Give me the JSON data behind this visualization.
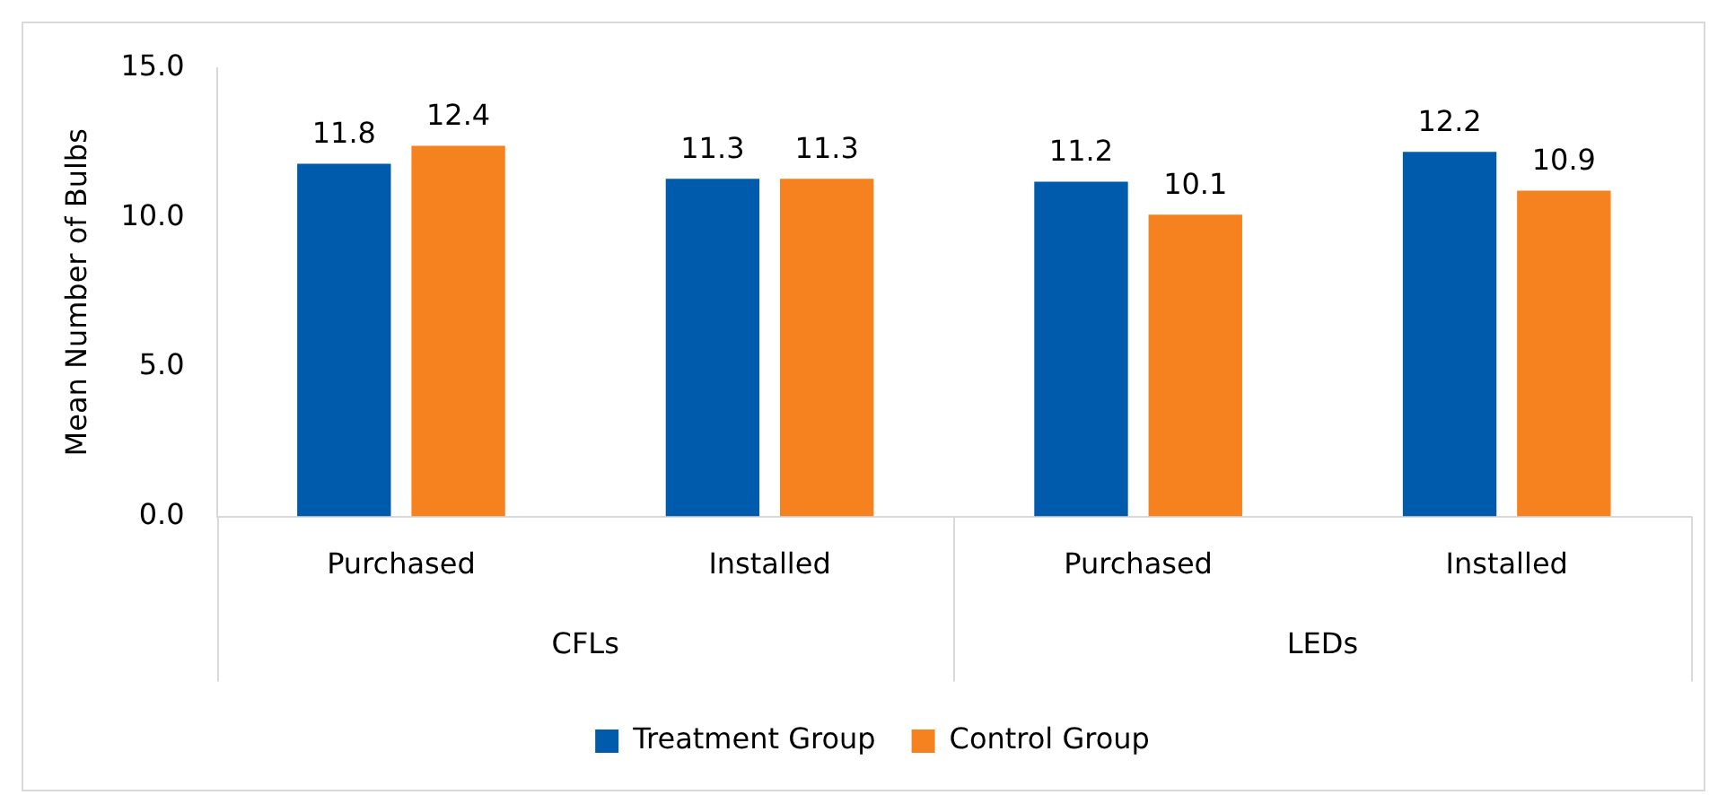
{
  "chart_data": {
    "type": "bar",
    "ylabel": "Mean Number of Bulbs",
    "categories": [
      "Purchased",
      "Installed",
      "Purchased",
      "Installed"
    ],
    "series": [
      {
        "name": "Treatment Group",
        "color": "#005bac",
        "values": [
          11.8,
          11.3,
          11.2,
          12.2
        ]
      },
      {
        "name": "Control Group",
        "color": "#f5821f",
        "values": [
          12.4,
          11.3,
          10.1,
          10.9
        ]
      }
    ],
    "ylim": [
      0,
      15
    ],
    "yticks": [
      {
        "value": 0,
        "label": "0.0"
      },
      {
        "value": 5,
        "label": "5.0"
      },
      {
        "value": 10,
        "label": "10.0"
      },
      {
        "value": 15,
        "label": "15.0"
      }
    ],
    "annotations": [
      "CFLs",
      "LEDs"
    ],
    "data_labels": true,
    "legend": "bottom"
  }
}
